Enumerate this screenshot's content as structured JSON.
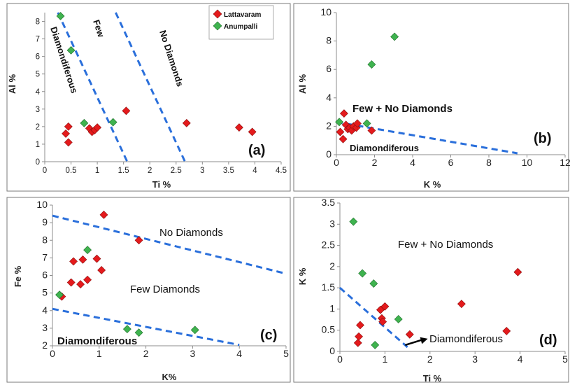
{
  "colors": {
    "Lattavaram": "#e41a1c",
    "Anumpalli": "#3fb34f",
    "boundary": "#2a6fdb",
    "frame": "#7a7a7a"
  },
  "chart_data": [
    {
      "panel": "a",
      "type": "scatter",
      "tag": "(a)",
      "xlabel": "Ti %",
      "ylabel": "Al %",
      "xlim": [
        0,
        4.5
      ],
      "ylim": [
        0,
        8.5
      ],
      "xticks": [
        "0",
        "0.5",
        "1",
        "1.5",
        "2",
        "2.5",
        "3",
        "3.5",
        "4",
        "4.5"
      ],
      "yticks": [
        "0",
        "1",
        "2",
        "3",
        "4",
        "5",
        "6",
        "7",
        "8"
      ],
      "legend": {
        "position": "top-right",
        "entries": [
          "Lattavaram",
          "Anumpalli"
        ]
      },
      "series": [
        {
          "name": "Lattavaram",
          "marker": "diamond",
          "points": [
            [
              0.4,
              1.6
            ],
            [
              0.45,
              1.1
            ],
            [
              0.45,
              2.0
            ],
            [
              0.85,
              1.9
            ],
            [
              0.9,
              1.7
            ],
            [
              0.95,
              1.8
            ],
            [
              1.0,
              1.95
            ],
            [
              1.55,
              2.9
            ],
            [
              2.7,
              2.2
            ],
            [
              3.7,
              1.95
            ],
            [
              3.95,
              1.7
            ]
          ]
        },
        {
          "name": "Anumpalli",
          "marker": "diamond",
          "points": [
            [
              0.3,
              8.3
            ],
            [
              0.5,
              6.35
            ],
            [
              0.75,
              2.2
            ],
            [
              1.3,
              2.25
            ]
          ]
        }
      ],
      "boundaries": [
        [
          [
            0.25,
            8.5
          ],
          [
            1.57,
            0
          ]
        ],
        [
          [
            1.35,
            8.5
          ],
          [
            2.67,
            0
          ]
        ]
      ],
      "zones": [
        "Diamondiferous",
        "Few",
        "No Diamonds"
      ]
    },
    {
      "panel": "b",
      "type": "scatter",
      "tag": "(b)",
      "xlabel": "K %",
      "ylabel": "Al %",
      "xlim": [
        0,
        12
      ],
      "ylim": [
        0,
        10
      ],
      "xticks": [
        "0",
        "2",
        "4",
        "6",
        "8",
        "10",
        "12"
      ],
      "yticks": [
        "0",
        "2",
        "4",
        "6",
        "8",
        "10"
      ],
      "series": [
        {
          "name": "Lattavaram",
          "marker": "diamond",
          "points": [
            [
              0.2,
              1.6
            ],
            [
              0.4,
              2.9
            ],
            [
              0.5,
              2.1
            ],
            [
              0.6,
              1.8
            ],
            [
              0.7,
              1.9
            ],
            [
              0.8,
              1.7
            ],
            [
              0.9,
              2.0
            ],
            [
              1.05,
              1.9
            ],
            [
              1.1,
              2.2
            ],
            [
              1.85,
              1.7
            ],
            [
              0.35,
              1.1
            ]
          ]
        },
        {
          "name": "Anumpalli",
          "marker": "diamond",
          "points": [
            [
              0.15,
              2.3
            ],
            [
              1.6,
              2.2
            ],
            [
              1.85,
              6.35
            ],
            [
              3.05,
              8.3
            ]
          ]
        }
      ],
      "boundaries": [
        [
          [
            0,
            2.3
          ],
          [
            9.5,
            0.1
          ]
        ]
      ],
      "zones": [
        "Few + No Diamonds",
        "Diamondiferous"
      ]
    },
    {
      "panel": "c",
      "type": "scatter",
      "tag": "(c)",
      "xlabel": "K%",
      "ylabel": "Fe %",
      "xlim": [
        0,
        5
      ],
      "ylim": [
        2,
        10
      ],
      "xticks": [
        "0",
        "1",
        "2",
        "3",
        "4",
        "5"
      ],
      "yticks": [
        "2",
        "3",
        "4",
        "5",
        "6",
        "7",
        "8",
        "9",
        "10"
      ],
      "series": [
        {
          "name": "Lattavaram",
          "marker": "diamond",
          "points": [
            [
              0.2,
              4.8
            ],
            [
              0.4,
              5.6
            ],
            [
              0.45,
              6.8
            ],
            [
              0.6,
              5.5
            ],
            [
              0.65,
              6.9
            ],
            [
              0.75,
              5.75
            ],
            [
              0.95,
              6.95
            ],
            [
              1.05,
              6.3
            ],
            [
              1.1,
              9.45
            ],
            [
              1.85,
              8.0
            ]
          ]
        },
        {
          "name": "Anumpalli",
          "marker": "diamond",
          "points": [
            [
              0.15,
              4.9
            ],
            [
              0.75,
              7.45
            ],
            [
              1.6,
              2.95
            ],
            [
              1.85,
              2.75
            ],
            [
              3.05,
              2.9
            ]
          ]
        }
      ],
      "boundaries": [
        [
          [
            0,
            9.4
          ],
          [
            5,
            6.1
          ]
        ],
        [
          [
            0,
            4.1
          ],
          [
            4,
            2.05
          ]
        ]
      ],
      "zones": [
        "No Diamonds",
        "Few Diamonds",
        "Diamondiferous"
      ]
    },
    {
      "panel": "d",
      "type": "scatter",
      "tag": "(d)",
      "xlabel": "Ti %",
      "ylabel": "K %",
      "xlim": [
        0,
        5
      ],
      "ylim": [
        0,
        3.5
      ],
      "xticks": [
        "0",
        "1",
        "2",
        "3",
        "4",
        "5"
      ],
      "yticks": [
        "0",
        "0.5",
        "1",
        "1.5",
        "2",
        "2.5",
        "3",
        "3.5"
      ],
      "series": [
        {
          "name": "Lattavaram",
          "marker": "diamond",
          "points": [
            [
              0.4,
              0.2
            ],
            [
              0.42,
              0.35
            ],
            [
              0.45,
              0.62
            ],
            [
              0.9,
              0.98
            ],
            [
              0.93,
              0.78
            ],
            [
              0.95,
              0.7
            ],
            [
              1.0,
              1.06
            ],
            [
              1.55,
              0.4
            ],
            [
              2.7,
              1.12
            ],
            [
              3.7,
              0.48
            ],
            [
              3.95,
              1.87
            ]
          ]
        },
        {
          "name": "Anumpalli",
          "marker": "diamond",
          "points": [
            [
              0.3,
              3.06
            ],
            [
              0.5,
              1.84
            ],
            [
              0.75,
              1.6
            ],
            [
              0.78,
              0.15
            ],
            [
              1.3,
              0.76
            ]
          ]
        }
      ],
      "boundaries": [
        [
          [
            0,
            1.5
          ],
          [
            1.5,
            0.1
          ]
        ]
      ],
      "arrow": [
        [
          1.45,
          0.15
        ],
        [
          1.95,
          0.3
        ]
      ],
      "zones": [
        "Few + No Diamonds",
        "Diamondiferous"
      ]
    }
  ]
}
